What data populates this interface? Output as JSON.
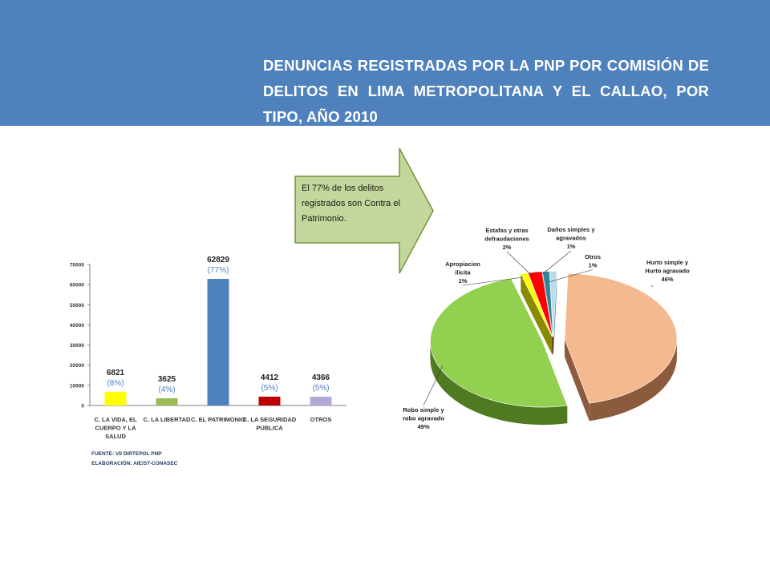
{
  "title": "DENUNCIAS REGISTRADAS POR LA PNP POR COMISIÓN DE DELITOS EN LIMA METROPOLITANA Y EL CALLAO, POR TIPO, AÑO 2010",
  "callout": "El   77% de los delitos registrados  son Contra el Patrimonio.",
  "source": "FUENTE: VII DIRTEPOL PNP",
  "elaboration": "ELABORACIÓN: AIE/ST-CONASEC",
  "chart_data": [
    {
      "type": "bar",
      "categories": [
        [
          "C. LA VIDA, EL",
          "CUERPO Y LA",
          "SALUD"
        ],
        [
          "C. LA LIBERTAD"
        ],
        [
          "C. EL PATRIMONIO"
        ],
        [
          "C. LA SEGURIDAD",
          "PUBLICA"
        ],
        [
          "OTROS"
        ]
      ],
      "values": [
        6821,
        3625,
        62829,
        4412,
        4366
      ],
      "value_labels": [
        "6821",
        "3625",
        "62829",
        "4412",
        "4366"
      ],
      "percent_labels": [
        "(8%)",
        "(4%)",
        "(77%)",
        "(5%)",
        "(5%)"
      ],
      "colors": [
        "#ffff00",
        "#9bbb59",
        "#4f81bd",
        "#c00000",
        "#b4a7d6"
      ],
      "ylim": [
        0,
        70000
      ],
      "yticks": [
        "0",
        "10000",
        "20000",
        "30000",
        "40000",
        "50000",
        "60000",
        "70000"
      ],
      "grid": false
    },
    {
      "type": "pie",
      "slices": [
        {
          "label": [
            "Hurto simple y",
            "Hurto agravado"
          ],
          "pct_label": "46%",
          "value": 46,
          "color": "#f5b98f",
          "side": "#8c5a3c"
        },
        {
          "label": [
            "Robo simple y",
            "robo agravado"
          ],
          "pct_label": "49%",
          "value": 49,
          "color": "#92d050",
          "side": "#4f7a22"
        },
        {
          "label": [
            "Apropiacion",
            "ilicita"
          ],
          "pct_label": "1%",
          "value": 1,
          "color": "#ffff00",
          "side": "#8a8a00"
        },
        {
          "label": [
            "Estafas y otras",
            "defraudaciones"
          ],
          "pct_label": "2%",
          "value": 2,
          "color": "#ff0000",
          "side": "#8b0000"
        },
        {
          "label": [
            "Daños simples y",
            "agravados"
          ],
          "pct_label": "1%",
          "value": 1,
          "color": "#31859c",
          "side": "#17404b"
        },
        {
          "label": [
            "Otros"
          ],
          "pct_label": "1%",
          "value": 1,
          "color": "#b7dee8",
          "side": "#5f8b96"
        }
      ]
    }
  ]
}
